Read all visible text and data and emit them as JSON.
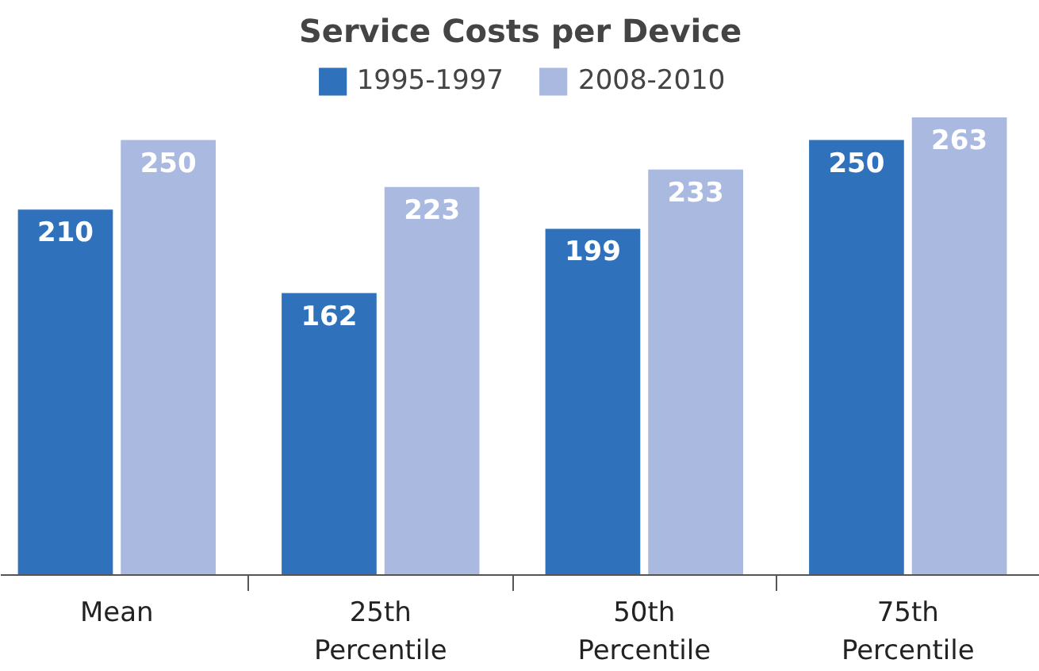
{
  "chart_data": {
    "type": "bar",
    "title": "Service Costs per Device",
    "categories": [
      "Mean",
      "25th Percentile",
      "50th Percentile",
      "75th Percentile"
    ],
    "series": [
      {
        "name": "1995-1997",
        "color": "#2f72bb",
        "values": [
          210,
          162,
          199,
          250
        ]
      },
      {
        "name": "2008-2010",
        "color": "#a9b9e0",
        "values": [
          250,
          223,
          233,
          263
        ]
      }
    ],
    "data_labels": true,
    "legend": "top"
  }
}
